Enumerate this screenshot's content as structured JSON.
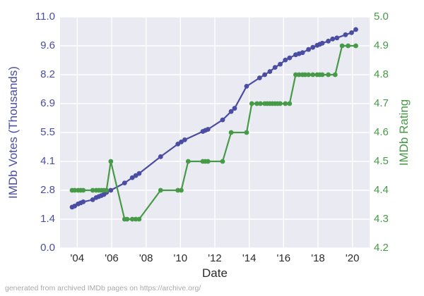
{
  "colors": {
    "figure_bg": "#ffffff",
    "plot_bg": "#eaeaf2",
    "grid": "#ffffff",
    "votes_blue": "#4a4da1",
    "rating_green": "#479a47",
    "x_tick_text": "#2b2b2b",
    "footer_text": "#a9a9a9"
  },
  "chart_data": {
    "type": "line",
    "title": "",
    "xlabel": "Date",
    "ylabel_left": "IMDb Votes (Thousands)",
    "ylabel_right": "IMDb Rating",
    "annotation": "generated from archived IMDb pages on https://archive.org/",
    "grid": true,
    "legend": "none",
    "x_range": [
      2003,
      2021
    ],
    "y_left_range": [
      0,
      11
    ],
    "y_right_range": [
      4.2,
      5.0
    ],
    "x_ticks": [
      {
        "label": "'04",
        "year": 2004
      },
      {
        "label": "'06",
        "year": 2006
      },
      {
        "label": "'08",
        "year": 2008
      },
      {
        "label": "'10",
        "year": 2010
      },
      {
        "label": "'12",
        "year": 2012
      },
      {
        "label": "'14",
        "year": 2014
      },
      {
        "label": "'16",
        "year": 2016
      },
      {
        "label": "'18",
        "year": 2018
      },
      {
        "label": "'20",
        "year": 2020
      }
    ],
    "y_left_ticks": [
      {
        "label": "0.0",
        "value": 0
      },
      {
        "label": "1.4",
        "value": 1.375
      },
      {
        "label": "2.8",
        "value": 2.75
      },
      {
        "label": "4.1",
        "value": 4.125
      },
      {
        "label": "5.5",
        "value": 5.5
      },
      {
        "label": "6.9",
        "value": 6.875
      },
      {
        "label": "8.2",
        "value": 8.25
      },
      {
        "label": "9.6",
        "value": 9.625
      },
      {
        "label": "11.0",
        "value": 11
      }
    ],
    "y_right_ticks": [
      {
        "label": "4.2",
        "value": 4.2
      },
      {
        "label": "4.3",
        "value": 4.3
      },
      {
        "label": "4.4",
        "value": 4.4
      },
      {
        "label": "4.5",
        "value": 4.5
      },
      {
        "label": "4.6",
        "value": 4.6
      },
      {
        "label": "4.7",
        "value": 4.7
      },
      {
        "label": "4.8",
        "value": 4.8
      },
      {
        "label": "4.9",
        "value": 4.9
      },
      {
        "label": "5.0",
        "value": 5.0
      }
    ],
    "series": [
      {
        "name": "IMDb Votes (Thousands)",
        "axis": "left",
        "color": "#4a4da1",
        "points": [
          [
            2003.7,
            1.95
          ],
          [
            2003.85,
            2.0
          ],
          [
            2004.05,
            2.1
          ],
          [
            2004.2,
            2.15
          ],
          [
            2004.35,
            2.2
          ],
          [
            2004.9,
            2.3
          ],
          [
            2005.1,
            2.4
          ],
          [
            2005.25,
            2.45
          ],
          [
            2005.4,
            2.5
          ],
          [
            2005.55,
            2.55
          ],
          [
            2005.7,
            2.65
          ],
          [
            2005.95,
            2.75
          ],
          [
            2006.75,
            3.1
          ],
          [
            2007.2,
            3.35
          ],
          [
            2007.4,
            3.45
          ],
          [
            2007.6,
            3.55
          ],
          [
            2008.85,
            4.35
          ],
          [
            2009.85,
            4.95
          ],
          [
            2010.05,
            5.05
          ],
          [
            2010.25,
            5.15
          ],
          [
            2011.3,
            5.55
          ],
          [
            2011.45,
            5.6
          ],
          [
            2011.6,
            5.65
          ],
          [
            2012.45,
            6.1
          ],
          [
            2012.95,
            6.5
          ],
          [
            2013.15,
            6.65
          ],
          [
            2013.85,
            7.7
          ],
          [
            2014.6,
            8.1
          ],
          [
            2014.9,
            8.25
          ],
          [
            2015.2,
            8.4
          ],
          [
            2015.5,
            8.6
          ],
          [
            2015.8,
            8.75
          ],
          [
            2016.1,
            8.95
          ],
          [
            2016.35,
            9.05
          ],
          [
            2016.7,
            9.2
          ],
          [
            2016.9,
            9.25
          ],
          [
            2017.1,
            9.3
          ],
          [
            2017.45,
            9.45
          ],
          [
            2017.7,
            9.55
          ],
          [
            2017.95,
            9.65
          ],
          [
            2018.1,
            9.7
          ],
          [
            2018.25,
            9.75
          ],
          [
            2018.6,
            9.85
          ],
          [
            2018.85,
            9.95
          ],
          [
            2019.1,
            10.0
          ],
          [
            2019.6,
            10.15
          ],
          [
            2019.95,
            10.25
          ],
          [
            2020.2,
            10.4
          ]
        ]
      },
      {
        "name": "IMDb Rating",
        "axis": "right",
        "color": "#479a47",
        "points": [
          [
            2003.7,
            4.4
          ],
          [
            2003.85,
            4.4
          ],
          [
            2004.05,
            4.4
          ],
          [
            2004.2,
            4.4
          ],
          [
            2004.35,
            4.4
          ],
          [
            2004.9,
            4.4
          ],
          [
            2005.1,
            4.4
          ],
          [
            2005.25,
            4.4
          ],
          [
            2005.4,
            4.4
          ],
          [
            2005.55,
            4.4
          ],
          [
            2005.7,
            4.4
          ],
          [
            2005.95,
            4.5
          ],
          [
            2006.75,
            4.3
          ],
          [
            2006.9,
            4.3
          ],
          [
            2007.2,
            4.3
          ],
          [
            2007.4,
            4.3
          ],
          [
            2007.6,
            4.3
          ],
          [
            2008.85,
            4.4
          ],
          [
            2009.85,
            4.4
          ],
          [
            2010.05,
            4.4
          ],
          [
            2010.45,
            4.5
          ],
          [
            2011.3,
            4.5
          ],
          [
            2011.45,
            4.5
          ],
          [
            2011.6,
            4.5
          ],
          [
            2012.45,
            4.5
          ],
          [
            2012.95,
            4.6
          ],
          [
            2013.85,
            4.6
          ],
          [
            2014.15,
            4.7
          ],
          [
            2014.45,
            4.7
          ],
          [
            2014.65,
            4.7
          ],
          [
            2014.9,
            4.7
          ],
          [
            2015.05,
            4.7
          ],
          [
            2015.2,
            4.7
          ],
          [
            2015.35,
            4.7
          ],
          [
            2015.5,
            4.7
          ],
          [
            2015.65,
            4.7
          ],
          [
            2015.8,
            4.7
          ],
          [
            2016.1,
            4.7
          ],
          [
            2016.35,
            4.7
          ],
          [
            2016.7,
            4.8
          ],
          [
            2016.9,
            4.8
          ],
          [
            2017.1,
            4.8
          ],
          [
            2017.25,
            4.8
          ],
          [
            2017.45,
            4.8
          ],
          [
            2017.7,
            4.8
          ],
          [
            2017.95,
            4.8
          ],
          [
            2018.1,
            4.8
          ],
          [
            2018.25,
            4.8
          ],
          [
            2018.6,
            4.8
          ],
          [
            2019.0,
            4.8
          ],
          [
            2019.4,
            4.9
          ],
          [
            2019.75,
            4.9
          ],
          [
            2020.2,
            4.9
          ]
        ]
      }
    ]
  }
}
